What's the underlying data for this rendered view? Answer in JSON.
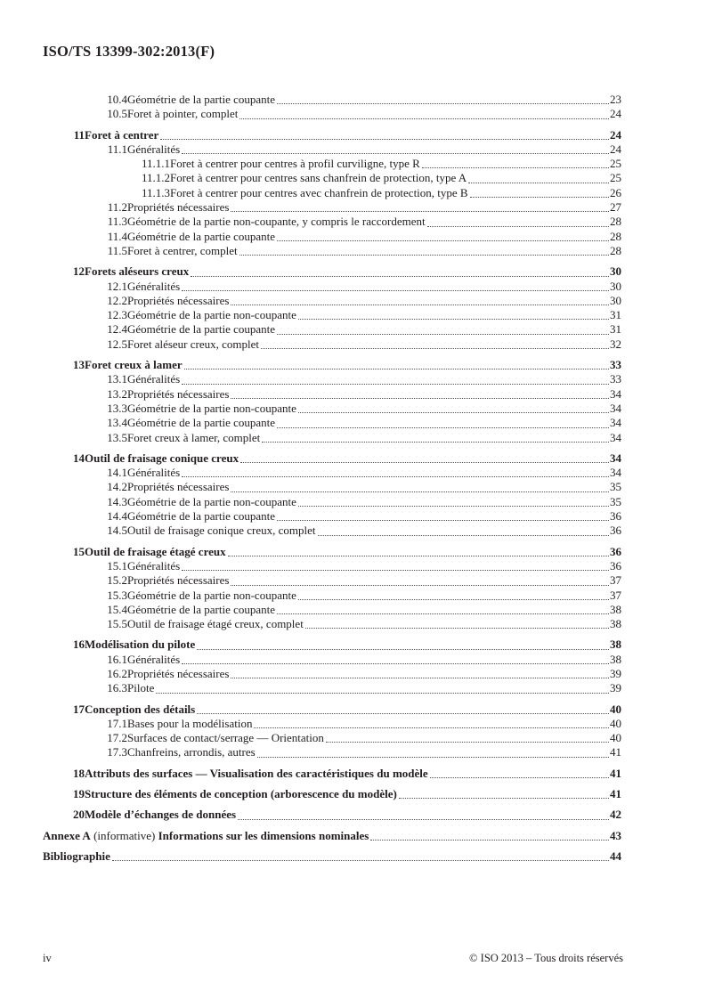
{
  "header": {
    "identifier": "ISO/TS 13399-302:2013(F)"
  },
  "footer": {
    "left": "iv",
    "right": "© ISO 2013 – Tous droits réservés"
  },
  "toc": {
    "entries": [
      {
        "level": "sub",
        "num": "10.4",
        "title": "Géométrie de la partie coupante",
        "page": "23"
      },
      {
        "level": "sub",
        "num": "10.5",
        "title": "Foret à pointer, complet",
        "page": "24"
      },
      {
        "level": "h1",
        "num": "11",
        "title": "Foret à centrer",
        "page": "24"
      },
      {
        "level": "sub",
        "num": "11.1",
        "title": "Généralités",
        "page": "24"
      },
      {
        "level": "subsub",
        "num": "11.1.1",
        "title": "Foret à centrer pour centres à profil curviligne, type R",
        "page": "25"
      },
      {
        "level": "subsub",
        "num": "11.1.2",
        "title": "Foret à centrer pour centres sans chanfrein de protection, type A",
        "page": "25"
      },
      {
        "level": "subsub",
        "num": "11.1.3",
        "title": "Foret à centrer pour centres avec chanfrein de protection, type B",
        "page": "26"
      },
      {
        "level": "sub",
        "num": "11.2",
        "title": "Propriétés nécessaires",
        "page": "27"
      },
      {
        "level": "sub",
        "num": "11.3",
        "title": "Géométrie de la partie non-coupante, y compris le raccordement",
        "page": "28"
      },
      {
        "level": "sub",
        "num": "11.4",
        "title": "Géométrie de la partie coupante",
        "page": "28"
      },
      {
        "level": "sub",
        "num": "11.5",
        "title": "Foret à centrer, complet",
        "page": "28"
      },
      {
        "level": "h1",
        "num": "12",
        "title": "Forets aléseurs creux",
        "page": "30"
      },
      {
        "level": "sub",
        "num": "12.1",
        "title": "Généralités",
        "page": "30"
      },
      {
        "level": "sub",
        "num": "12.2",
        "title": "Propriétés nécessaires",
        "page": "30"
      },
      {
        "level": "sub",
        "num": "12.3",
        "title": "Géométrie de la partie non-coupante",
        "page": "31"
      },
      {
        "level": "sub",
        "num": "12.4",
        "title": "Géométrie de la partie coupante",
        "page": "31"
      },
      {
        "level": "sub",
        "num": "12.5",
        "title": "Foret aléseur creux, complet",
        "page": "32"
      },
      {
        "level": "h1",
        "num": "13",
        "title": "Foret creux à lamer",
        "page": "33"
      },
      {
        "level": "sub",
        "num": "13.1",
        "title": "Généralités",
        "page": "33"
      },
      {
        "level": "sub",
        "num": "13.2",
        "title": "Propriétés nécessaires",
        "page": "34"
      },
      {
        "level": "sub",
        "num": "13.3",
        "title": "Géométrie de la partie non-coupante",
        "page": "34"
      },
      {
        "level": "sub",
        "num": "13.4",
        "title": "Géométrie de la partie coupante",
        "page": "34"
      },
      {
        "level": "sub",
        "num": "13.5",
        "title": "Foret creux à lamer, complet",
        "page": "34"
      },
      {
        "level": "h1",
        "num": "14",
        "title": "Outil de fraisage conique creux",
        "page": "34"
      },
      {
        "level": "sub",
        "num": "14.1",
        "title": "Généralités",
        "page": "34"
      },
      {
        "level": "sub",
        "num": "14.2",
        "title": "Propriétés nécessaires",
        "page": "35"
      },
      {
        "level": "sub",
        "num": "14.3",
        "title": "Géométrie de la partie non-coupante",
        "page": "35"
      },
      {
        "level": "sub",
        "num": "14.4",
        "title": "Géométrie de la partie coupante",
        "page": "36"
      },
      {
        "level": "sub",
        "num": "14.5",
        "title": "Outil de fraisage conique creux, complet",
        "page": "36"
      },
      {
        "level": "h1",
        "num": "15",
        "title": "Outil de fraisage étagé creux",
        "page": "36"
      },
      {
        "level": "sub",
        "num": "15.1",
        "title": "Généralités",
        "page": "36"
      },
      {
        "level": "sub",
        "num": "15.2",
        "title": "Propriétés nécessaires",
        "page": "37"
      },
      {
        "level": "sub",
        "num": "15.3",
        "title": "Géométrie de la partie non-coupante",
        "page": "37"
      },
      {
        "level": "sub",
        "num": "15.4",
        "title": "Géométrie de la partie coupante",
        "page": "38"
      },
      {
        "level": "sub",
        "num": "15.5",
        "title": "Outil de fraisage étagé creux, complet",
        "page": "38"
      },
      {
        "level": "h1",
        "num": "16",
        "title": "Modélisation du pilote",
        "page": "38"
      },
      {
        "level": "sub",
        "num": "16.1",
        "title": "Généralités",
        "page": "38"
      },
      {
        "level": "sub",
        "num": "16.2",
        "title": "Propriétés nécessaires",
        "page": "39"
      },
      {
        "level": "sub",
        "num": "16.3",
        "title": "Pilote",
        "page": "39"
      },
      {
        "level": "h1",
        "num": "17",
        "title": "Conception des détails",
        "page": "40"
      },
      {
        "level": "sub",
        "num": "17.1",
        "title": "Bases pour la modélisation",
        "page": "40"
      },
      {
        "level": "sub",
        "num": "17.2",
        "title": "Surfaces de contact/serrage — Orientation",
        "page": "40"
      },
      {
        "level": "sub",
        "num": "17.3",
        "title": "Chanfreins, arrondis, autres",
        "page": "41"
      },
      {
        "level": "h1",
        "num": "18",
        "title": "Attributs des surfaces — Visualisation des caractéristiques du modèle",
        "page": "41"
      },
      {
        "level": "h1",
        "num": "19",
        "title": "Structure des éléments de conception (arborescence du modèle)",
        "page": "41"
      },
      {
        "level": "h1",
        "num": "20",
        "title": "Modèle d’échanges de données",
        "page": "42"
      },
      {
        "level": "annex",
        "num": "",
        "parts": [
          {
            "text": "Annexe A",
            "bold": true
          },
          {
            "text": " (informative) ",
            "bold": false
          },
          {
            "text": "Informations sur les dimensions nominales",
            "bold": true
          }
        ],
        "page": "43"
      },
      {
        "level": "biblio",
        "num": "",
        "title": "Bibliographie",
        "page": "44"
      }
    ]
  }
}
